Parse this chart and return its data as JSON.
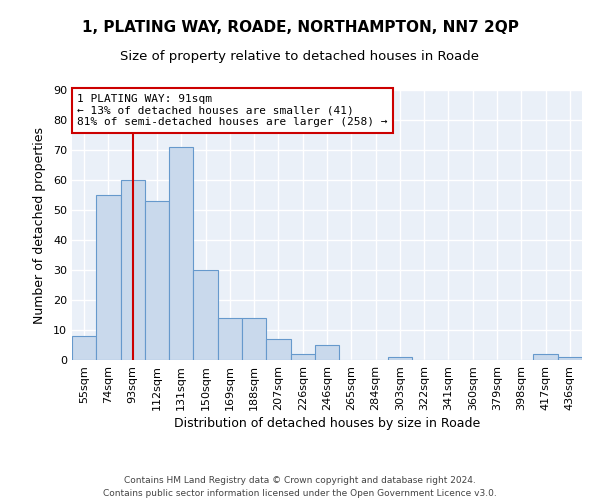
{
  "title": "1, PLATING WAY, ROADE, NORTHAMPTON, NN7 2QP",
  "subtitle": "Size of property relative to detached houses in Roade",
  "xlabel": "Distribution of detached houses by size in Roade",
  "ylabel": "Number of detached properties",
  "bar_labels": [
    "55sqm",
    "74sqm",
    "93sqm",
    "112sqm",
    "131sqm",
    "150sqm",
    "169sqm",
    "188sqm",
    "207sqm",
    "226sqm",
    "246sqm",
    "265sqm",
    "284sqm",
    "303sqm",
    "322sqm",
    "341sqm",
    "360sqm",
    "379sqm",
    "398sqm",
    "417sqm",
    "436sqm"
  ],
  "bar_values": [
    8,
    55,
    60,
    53,
    71,
    30,
    14,
    14,
    7,
    2,
    5,
    0,
    0,
    1,
    0,
    0,
    0,
    0,
    0,
    2,
    1
  ],
  "bar_color": "#c9d9ec",
  "bar_edge_color": "#6699cc",
  "ylim": [
    0,
    90
  ],
  "yticks": [
    0,
    10,
    20,
    30,
    40,
    50,
    60,
    70,
    80,
    90
  ],
  "vline_x": 2,
  "vline_color": "#cc0000",
  "annotation_title": "1 PLATING WAY: 91sqm",
  "annotation_line1": "← 13% of detached houses are smaller (41)",
  "annotation_line2": "81% of semi-detached houses are larger (258) →",
  "annotation_box_facecolor": "#ffffff",
  "annotation_box_edgecolor": "#cc0000",
  "footer_line1": "Contains HM Land Registry data © Crown copyright and database right 2024.",
  "footer_line2": "Contains public sector information licensed under the Open Government Licence v3.0.",
  "figure_facecolor": "#ffffff",
  "axes_facecolor": "#eaf0f8",
  "grid_color": "#ffffff",
  "title_fontsize": 11,
  "subtitle_fontsize": 9.5,
  "xlabel_fontsize": 9,
  "ylabel_fontsize": 9,
  "tick_fontsize": 8,
  "annotation_fontsize": 8,
  "footer_fontsize": 6.5
}
